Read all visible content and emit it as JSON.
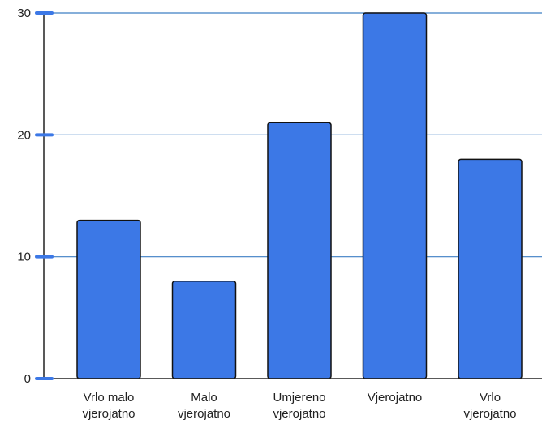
{
  "chart_data": {
    "type": "bar",
    "categories": [
      [
        "Vrlo malo",
        "vjerojatno"
      ],
      [
        "Malo",
        "vjerojatno"
      ],
      [
        "Umjereno",
        "vjerojatno"
      ],
      [
        "Vjerojatno"
      ],
      [
        "Vrlo",
        "vjerojatno"
      ]
    ],
    "values": [
      13,
      8,
      21,
      30,
      18
    ],
    "ylim": [
      0,
      30
    ],
    "yticks": [
      "0",
      "10",
      "20",
      "30"
    ],
    "grid": true,
    "colors": {
      "bar_fill": "#3c78e6",
      "bar_stroke": "#111111",
      "grid": "#3e7fc4",
      "tick_mark": "#3c78e6",
      "axis": "#222222"
    }
  }
}
